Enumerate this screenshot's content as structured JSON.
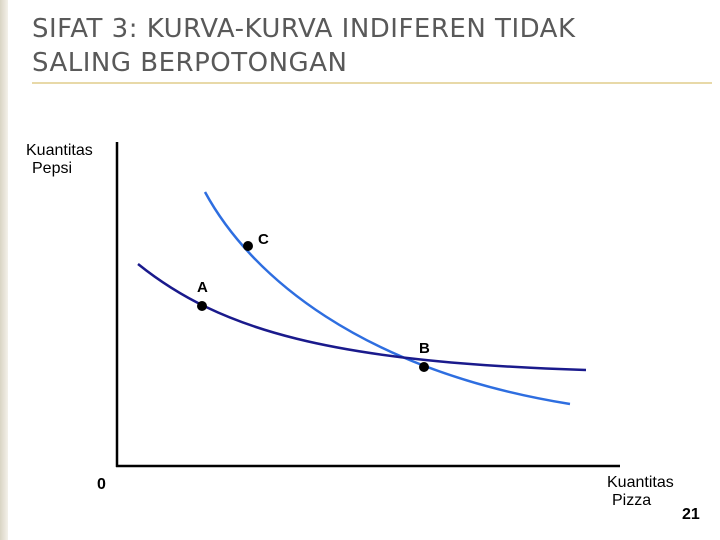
{
  "slide": {
    "title": "SIFAT 3: KURVA-KURVA INDIFEREN TIDAK SALING BERPOTONGAN",
    "page_number": "21"
  },
  "diagram": {
    "y_axis_label_line1": "Kuantitas",
    "y_axis_label_line2": "Pepsi",
    "x_axis_label_line1": "Kuantitas",
    "x_axis_label_line2": "Pizza",
    "origin_label": "0",
    "points": {
      "a": "A",
      "b": "B",
      "c": "C"
    },
    "colors": {
      "curve_steep": "#2e6ee0",
      "curve_flat": "#1a1a8c",
      "axis": "#000000",
      "accent_line": "#e8d9a8"
    }
  }
}
